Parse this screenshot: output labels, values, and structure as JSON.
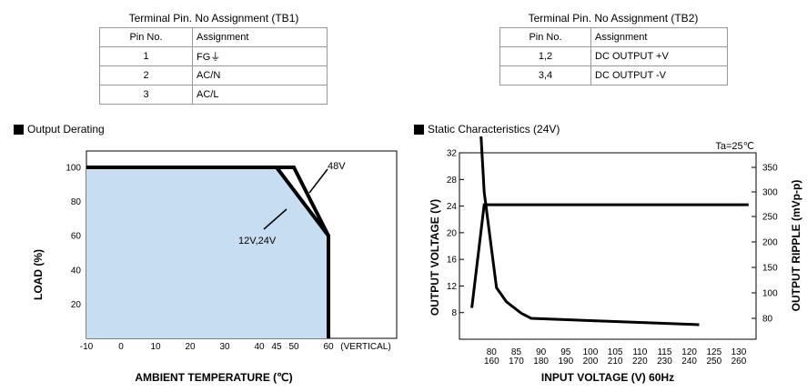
{
  "tb1": {
    "title": "Terminal Pin. No Assignment (TB1)",
    "header": [
      "Pin No.",
      "Assignment"
    ],
    "rows": [
      [
        "1",
        "FG⏚"
      ],
      [
        "2",
        "AC/N"
      ],
      [
        "3",
        "AC/L"
      ]
    ]
  },
  "tb2": {
    "title": "Terminal Pin. No Assignment (TB2)",
    "header": [
      "Pin No.",
      "Assignment"
    ],
    "rows": [
      [
        "1,2",
        "DC OUTPUT +V"
      ],
      [
        "3,4",
        "DC OUTPUT -V"
      ]
    ]
  },
  "derating": {
    "title": "Output Derating"
  },
  "static": {
    "title": "Static Characteristics (24V)"
  },
  "chart_data": [
    {
      "type": "area",
      "xlabel": "AMBIENT TEMPERATURE (℃)",
      "ylabel": "LOAD (%)",
      "x_ticks": [
        "-10",
        "0",
        "10",
        "20",
        "30",
        "40",
        "45",
        "50",
        "60",
        "(VERTICAL)"
      ],
      "y_ticks": [
        "100",
        "80",
        "60",
        "40",
        "20"
      ],
      "xlim": [
        -10,
        70
      ],
      "ylim": [
        0,
        100
      ],
      "fill_color": "#c7ddf2",
      "series": [
        {
          "name": "48V",
          "x": [
            -10,
            50,
            60,
            60
          ],
          "y": [
            100,
            100,
            60,
            0
          ]
        },
        {
          "name": "12V,24V",
          "x": [
            -10,
            45,
            60,
            60
          ],
          "y": [
            100,
            100,
            60,
            0
          ]
        }
      ]
    },
    {
      "type": "line",
      "xlabel": "INPUT VOLTAGE (V) 60Hz",
      "ylabel": "OUTPUT VOLTAGE (V)",
      "y2label": "OUTPUT RIPPLE (mVp-p)",
      "annotation": "Ta=25℃",
      "x_ticks": [
        [
          "80",
          "160"
        ],
        [
          "85",
          "170"
        ],
        [
          "90",
          "180"
        ],
        [
          "95",
          "190"
        ],
        [
          "100",
          "200"
        ],
        [
          "105",
          "210"
        ],
        [
          "110",
          "220"
        ],
        [
          "115",
          "230"
        ],
        [
          "120",
          "240"
        ],
        [
          "125",
          "250"
        ],
        [
          "130",
          "260"
        ]
      ],
      "xlim": [
        73.5,
        133.5
      ],
      "y_ticks": [
        "32",
        "28",
        "24",
        "20",
        "16",
        "12",
        "8"
      ],
      "ylim": [
        4,
        32
      ],
      "y2_ticks": [
        "350",
        "300",
        "250",
        "200",
        "150",
        "100",
        "80"
      ],
      "series": [
        {
          "axis": "y",
          "x": [
            76,
            78.5,
            132
          ],
          "y": [
            8.7,
            24.2,
            24.2
          ]
        },
        {
          "axis": "y2",
          "x": [
            76,
            78.5,
            81,
            83,
            86,
            88,
            122
          ],
          "y": [
            352,
            300,
            110,
            93,
            84,
            80,
            75
          ]
        }
      ]
    }
  ]
}
